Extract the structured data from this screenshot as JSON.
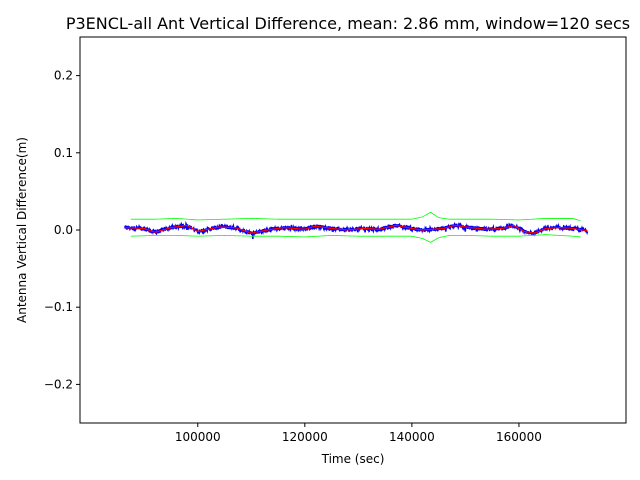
{
  "chart_data": {
    "type": "line",
    "title": "P3ENCL-all Ant Vertical Difference, mean: 2.86 mm, window=120 secs",
    "xlabel": "Time (sec)",
    "ylabel": "Antenna Vertical Difference(m)",
    "xlim": [
      78000,
      180000
    ],
    "ylim": [
      -0.25,
      0.25
    ],
    "xticks": [
      100000,
      120000,
      140000,
      160000
    ],
    "xtick_labels": [
      "100000",
      "120000",
      "140000",
      "160000"
    ],
    "yticks": [
      -0.2,
      -0.1,
      0.0,
      0.1,
      0.2
    ],
    "ytick_labels": [
      "−0.2",
      "−0.1",
      "0.0",
      "0.1",
      "0.2"
    ],
    "grid": false,
    "series": [
      {
        "role": "raw",
        "color": "#0000ff",
        "x_range": [
          86400,
          172800
        ],
        "noise_amplitude": 0.0025
      },
      {
        "role": "running-mean",
        "color": "#ff0000",
        "x": [
          86400,
          90000,
          92000,
          95000,
          98000,
          100000,
          104000,
          107000,
          110000,
          113000,
          116000,
          120000,
          122000,
          125000,
          128000,
          131000,
          134000,
          137000,
          140000,
          142000,
          144000,
          146000,
          148000,
          151000,
          154000,
          157000,
          159000,
          161000,
          163000,
          165000,
          168000,
          170000,
          172800
        ],
        "y": [
          0.003,
          0.002,
          -0.003,
          0.003,
          0.006,
          -0.002,
          0.004,
          0.003,
          -0.004,
          0.0,
          0.003,
          0.001,
          0.005,
          0.002,
          0.0,
          0.002,
          0.001,
          0.006,
          0.002,
          0.0,
          0.001,
          0.002,
          0.006,
          0.003,
          0.001,
          0.002,
          0.006,
          -0.002,
          -0.004,
          0.002,
          0.003,
          0.002,
          -0.001
        ]
      },
      {
        "role": "upper-envelope",
        "color": "#00ff00",
        "x": [
          87500,
          92000,
          96000,
          100000,
          105000,
          110000,
          115000,
          120000,
          125000,
          130000,
          135000,
          140000,
          142000,
          143500,
          145000,
          147000,
          150000,
          155000,
          160000,
          165000,
          170000,
          171500
        ],
        "y": [
          0.014,
          0.014,
          0.015,
          0.013,
          0.014,
          0.015,
          0.014,
          0.014,
          0.014,
          0.014,
          0.014,
          0.014,
          0.017,
          0.023,
          0.016,
          0.014,
          0.014,
          0.014,
          0.013,
          0.015,
          0.015,
          0.012
        ]
      },
      {
        "role": "lower-envelope",
        "color": "#00ff00",
        "x": [
          87500,
          92000,
          96000,
          100000,
          105000,
          110000,
          115000,
          120000,
          125000,
          130000,
          135000,
          140000,
          142000,
          143500,
          145000,
          147000,
          150000,
          155000,
          160000,
          165000,
          170000,
          171500
        ],
        "y": [
          -0.008,
          -0.007,
          -0.007,
          -0.008,
          -0.007,
          -0.008,
          -0.008,
          -0.009,
          -0.007,
          -0.008,
          -0.008,
          -0.008,
          -0.011,
          -0.016,
          -0.01,
          -0.007,
          -0.007,
          -0.008,
          -0.008,
          -0.006,
          -0.008,
          -0.009
        ]
      }
    ]
  }
}
